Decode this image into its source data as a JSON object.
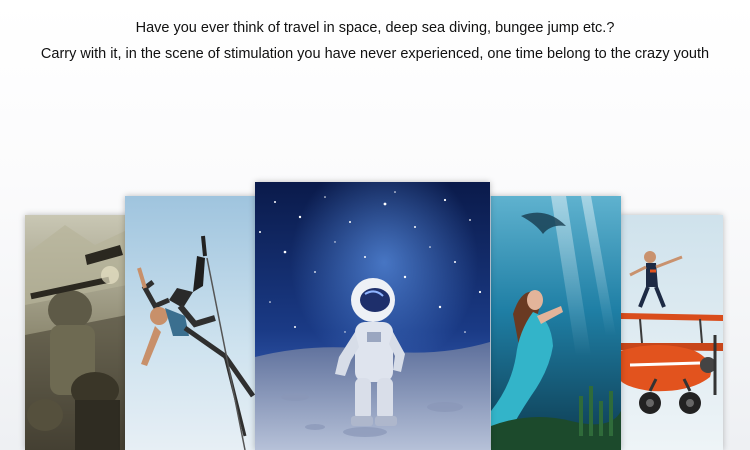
{
  "caption": {
    "line1": "Have you ever think of travel in space, deep sea diving, bungee jump etc.?",
    "line2": "Carry with it, in the scene of stimulation you have never experienced, one time belong to the crazy youth"
  },
  "panels": [
    {
      "name": "battle",
      "icon": "soldiers-battle-photo"
    },
    {
      "name": "bungee",
      "icon": "bungee-jumper-photo"
    },
    {
      "name": "space",
      "icon": "astronaut-moon-photo"
    },
    {
      "name": "deep-sea",
      "icon": "diver-underwater-photo"
    },
    {
      "name": "stunt-plane",
      "icon": "biplane-stunt-photo"
    }
  ],
  "colors": {
    "space_sky": "#0c1f55",
    "sea": "#1f7fa5",
    "bungee_sky": "#bfd9ea",
    "plane_body": "#e2531e"
  }
}
